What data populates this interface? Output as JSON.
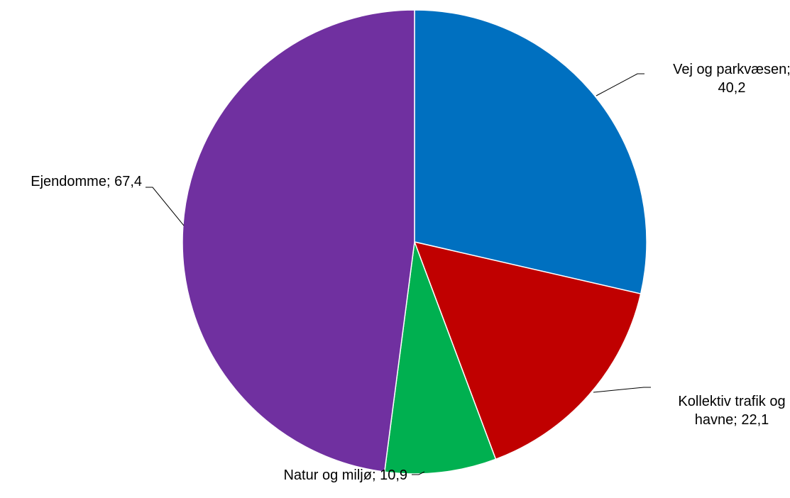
{
  "chart_data": {
    "type": "pie",
    "title": "",
    "start_angle_deg": 0,
    "direction": "clockwise",
    "slices": [
      {
        "name": "Vej og parkvæsen",
        "value": 40.2,
        "label_lines": [
          "Vej og parkvæsen;",
          "40,2"
        ],
        "color": "#0070C0"
      },
      {
        "name": "Kollektiv trafik og havne",
        "value": 22.1,
        "label_lines": [
          "Kollektiv trafik og",
          "havne; 22,1"
        ],
        "color": "#C00000"
      },
      {
        "name": "Natur og miljø",
        "value": 10.9,
        "label_lines": [
          "Natur og miljø; 10,9"
        ],
        "color": "#00B050"
      },
      {
        "name": "Ejendomme",
        "value": 67.4,
        "label_lines": [
          "Ejendomme; 67,4"
        ],
        "color": "#7030A0"
      }
    ]
  }
}
